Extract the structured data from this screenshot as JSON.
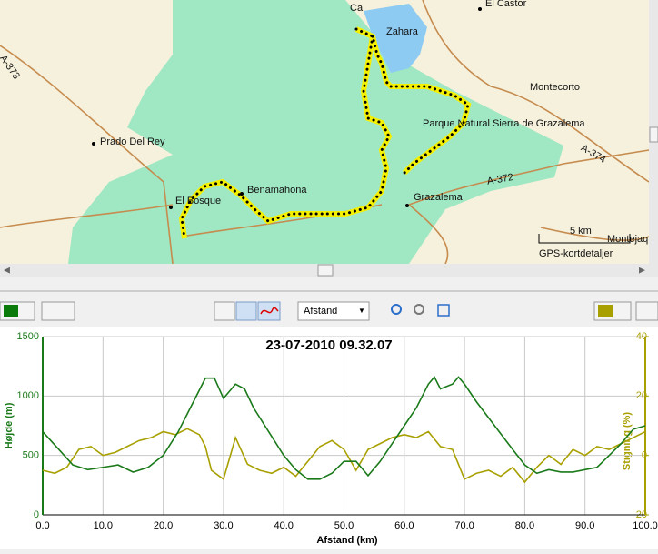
{
  "map": {
    "labels": {
      "top": "Ca",
      "castor": "El Castor",
      "zahara": "Zahara",
      "montecorto": "Montecorto",
      "a373": "A-373",
      "prado": "Prado Del Rey",
      "parque": "Parque Natural Sierra de Grazalema",
      "a374": "A-374",
      "benamahona": "Benamahona",
      "a372": "A-372",
      "bosque": "El Bosque",
      "grazalema": "Grazalema",
      "montejaq": "Montejaq"
    },
    "scale": "5 km",
    "attribution": "GPS-kortdetaljer"
  },
  "toolbar": {
    "xmode": "Afstand"
  },
  "chart_data": {
    "type": "line",
    "title": "23-07-2010 09.32.07",
    "x_label": "Afstand (km)",
    "y_label": "Højde (m)",
    "y2_label": "Stigning (%)",
    "xlim": [
      0,
      100
    ],
    "xticks": [
      {
        "value": 0,
        "label": "0.0"
      },
      {
        "value": 10,
        "label": "10.0"
      },
      {
        "value": 20,
        "label": "20.0"
      },
      {
        "value": 30,
        "label": "30.0"
      },
      {
        "value": 40,
        "label": "40.0"
      },
      {
        "value": 50,
        "label": "50.0"
      },
      {
        "value": 60,
        "label": "60.0"
      },
      {
        "value": 70,
        "label": "70.0"
      },
      {
        "value": 80,
        "label": "80.0"
      },
      {
        "value": 90,
        "label": "90.0"
      },
      {
        "value": 100,
        "label": "100.0"
      }
    ],
    "ylim": [
      0,
      1500
    ],
    "yticks": [
      0,
      500,
      1000,
      1500
    ],
    "y2lim": [
      -20,
      40
    ],
    "y2ticks": [
      -20,
      0,
      20,
      40
    ],
    "grid": true,
    "series": [
      {
        "name": "Højde (m)",
        "color": "#1a7a1a",
        "x": [
          0,
          2.5,
          5,
          7.5,
          10,
          12.5,
          15,
          17.5,
          20,
          22.5,
          25,
          27,
          28.5,
          30,
          32,
          33.5,
          35,
          37.5,
          40,
          42,
          44,
          46,
          48,
          50,
          52,
          54,
          56,
          58,
          60,
          62,
          64,
          65,
          66,
          68,
          69,
          70,
          72,
          75,
          78,
          80,
          82,
          84,
          86,
          88,
          90,
          92,
          94,
          96,
          98,
          100
        ],
        "values": [
          700,
          560,
          420,
          380,
          400,
          420,
          360,
          400,
          500,
          700,
          950,
          1150,
          1150,
          980,
          1100,
          1060,
          900,
          700,
          500,
          380,
          300,
          300,
          350,
          450,
          450,
          330,
          450,
          600,
          750,
          900,
          1100,
          1160,
          1060,
          1100,
          1160,
          1100,
          950,
          750,
          550,
          420,
          350,
          380,
          360,
          360,
          380,
          400,
          500,
          600,
          720,
          750
        ]
      },
      {
        "name": "Stigning (%)",
        "color": "#a8a000",
        "axis": "y2",
        "x": [
          0,
          2,
          4,
          6,
          8,
          10,
          12,
          14,
          16,
          18,
          20,
          22,
          24,
          26,
          27,
          28,
          30,
          32,
          34,
          36,
          38,
          40,
          42,
          44,
          46,
          48,
          50,
          52,
          54,
          56,
          58,
          60,
          62,
          64,
          66,
          68,
          70,
          72,
          74,
          76,
          78,
          80,
          82,
          84,
          86,
          88,
          90,
          92,
          94,
          96,
          98,
          100
        ],
        "values": [
          -5,
          -6,
          -4,
          2,
          3,
          0,
          1,
          3,
          5,
          6,
          8,
          7,
          9,
          7,
          3,
          -5,
          -8,
          6,
          -3,
          -5,
          -6,
          -4,
          -7,
          -2,
          3,
          5,
          2,
          -5,
          2,
          4,
          6,
          7,
          6,
          8,
          3,
          2,
          -8,
          -6,
          -5,
          -7,
          -4,
          -9,
          -4,
          0,
          -3,
          2,
          0,
          3,
          2,
          4,
          6,
          8
        ]
      }
    ]
  }
}
